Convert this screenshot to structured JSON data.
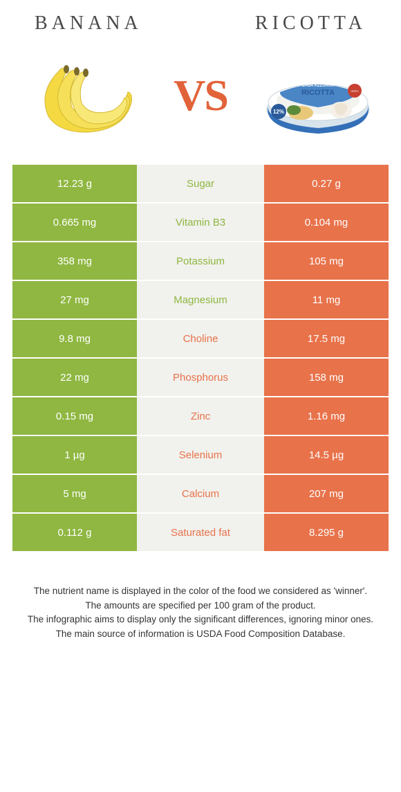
{
  "colors": {
    "left": "#8fb741",
    "right": "#e8724a",
    "mid_bg": "#f1f1ed",
    "mid_left_text": "#8fb741",
    "mid_right_text": "#e8724a",
    "vs": "#e2633a",
    "title": "#4a4a4a"
  },
  "header": {
    "left": "Banana",
    "right": "Ricotta",
    "vs": "VS"
  },
  "rows": [
    {
      "left": "12.23 g",
      "label": "Sugar",
      "right": "0.27 g",
      "winner": "left"
    },
    {
      "left": "0.665 mg",
      "label": "Vitamin B3",
      "right": "0.104 mg",
      "winner": "left"
    },
    {
      "left": "358 mg",
      "label": "Potassium",
      "right": "105 mg",
      "winner": "left"
    },
    {
      "left": "27 mg",
      "label": "Magnesium",
      "right": "11 mg",
      "winner": "left"
    },
    {
      "left": "9.8 mg",
      "label": "Choline",
      "right": "17.5 mg",
      "winner": "right"
    },
    {
      "left": "22 mg",
      "label": "Phosphorus",
      "right": "158 mg",
      "winner": "right"
    },
    {
      "left": "0.15 mg",
      "label": "Zinc",
      "right": "1.16 mg",
      "winner": "right"
    },
    {
      "left": "1 µg",
      "label": "Selenium",
      "right": "14.5 µg",
      "winner": "right"
    },
    {
      "left": "5 mg",
      "label": "Calcium",
      "right": "207 mg",
      "winner": "right"
    },
    {
      "left": "0.112 g",
      "label": "Saturated fat",
      "right": "8.295 g",
      "winner": "right"
    }
  ],
  "footnote": {
    "l1": "The nutrient name is displayed in the color of the food we considered as 'winner'.",
    "l2": "The amounts are specified per 100 gram of the product.",
    "l3": "The infographic aims to display only the significant differences, ignoring minor ones.",
    "l4": "The main source of information is USDA Food Composition Database."
  }
}
